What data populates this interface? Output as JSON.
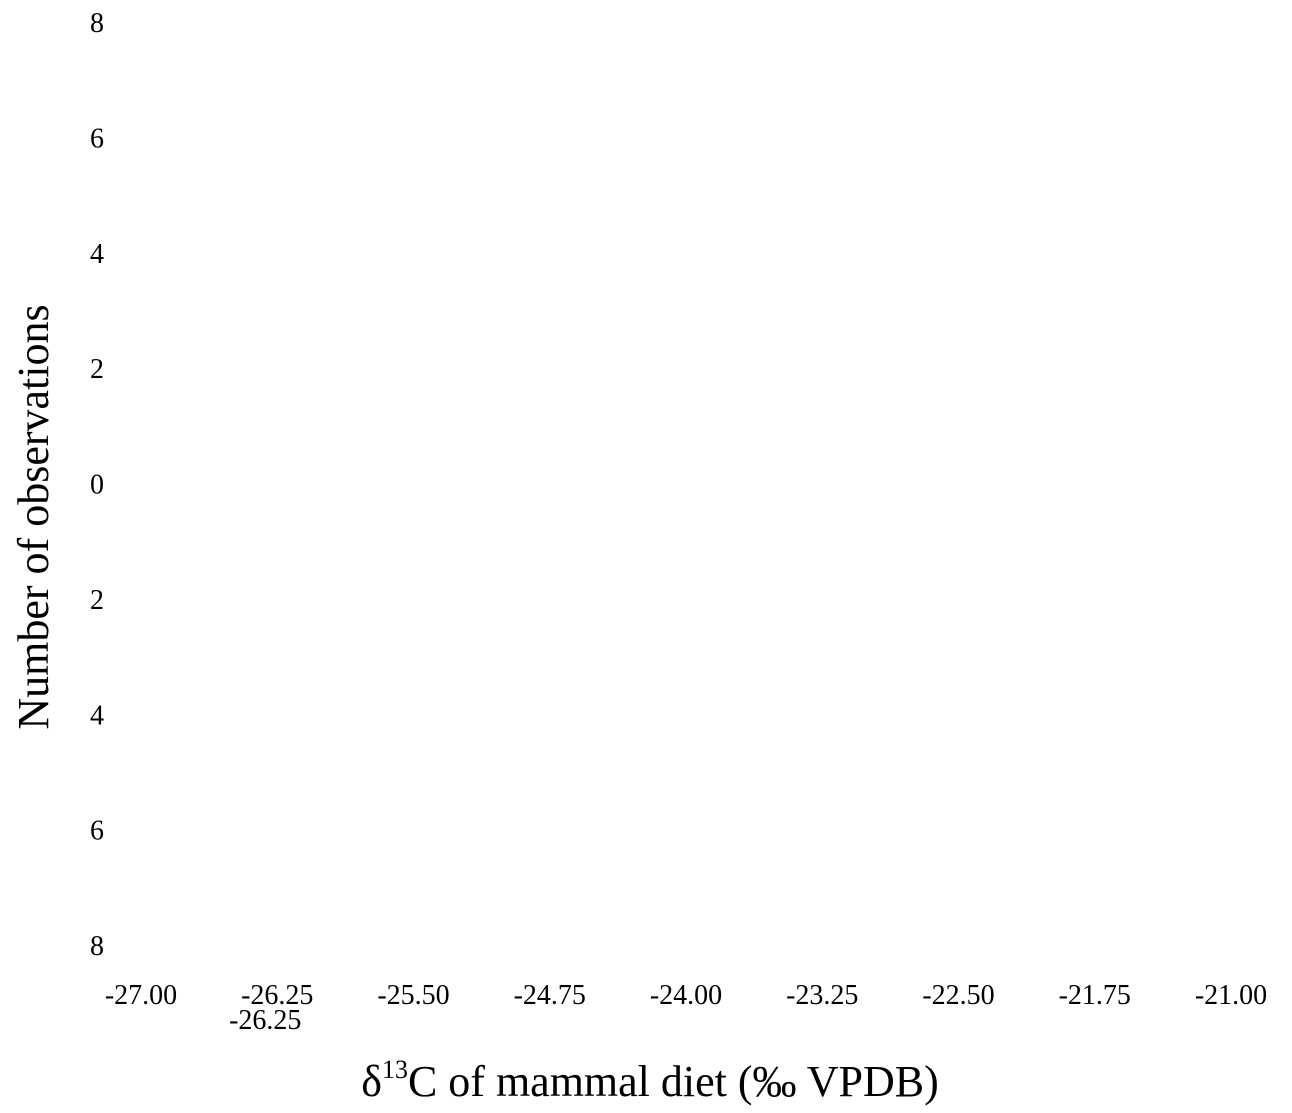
{
  "chart_data": {
    "type": "bar",
    "title": "",
    "xlabel": {
      "prefix": "δ",
      "superscript": "13",
      "rest": "C of mammal diet (‰ VPDB)"
    },
    "ylabel": "Number of observations",
    "y_tick_labels": [
      "8",
      "6",
      "4",
      "2",
      "0",
      "2",
      "4",
      "6",
      "8"
    ],
    "x_tick_labels": [
      "-27.00",
      "-26.25",
      "-25.50",
      "-24.75",
      "-24.00",
      "-23.25",
      "-22.50",
      "-21.75",
      "-21.00"
    ],
    "x_extra_tick_label": "-26.25",
    "xlim": [
      -27.0,
      -21.0
    ],
    "ylim": [
      -8,
      8
    ],
    "series": [],
    "grid": false,
    "legend": "none"
  }
}
